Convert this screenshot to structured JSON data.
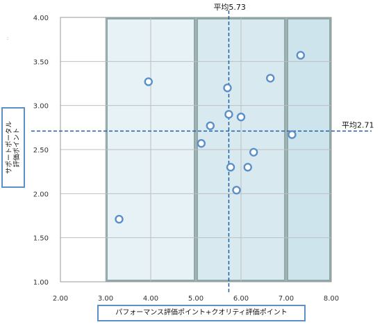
{
  "chart_data": {
    "type": "scatter",
    "xlabel": "パフォーマンス評価ポイント+クオリティ評価ポイント",
    "ylabel_lines": [
      "サポートポータル",
      "評価ポイント"
    ],
    "xlim": [
      2.0,
      8.0
    ],
    "ylim": [
      1.0,
      4.0
    ],
    "x_ticks": [
      "2.00",
      "3.00",
      "4.00",
      "5.00",
      "6.00",
      "7.00",
      "8.00"
    ],
    "y_ticks": [
      "1.00",
      "1.50",
      "2.00",
      "2.50",
      "3.00",
      "3.50",
      "4.00"
    ],
    "grid": true,
    "legend": "none",
    "marker_color": "#5b8fc9",
    "points": [
      {
        "x": 3.3,
        "y": 1.71
      },
      {
        "x": 3.95,
        "y": 3.27
      },
      {
        "x": 5.12,
        "y": 2.57
      },
      {
        "x": 5.32,
        "y": 2.77
      },
      {
        "x": 5.7,
        "y": 3.2
      },
      {
        "x": 5.73,
        "y": 2.9
      },
      {
        "x": 5.77,
        "y": 2.3
      },
      {
        "x": 5.9,
        "y": 2.04
      },
      {
        "x": 6.0,
        "y": 2.87
      },
      {
        "x": 6.15,
        "y": 2.3
      },
      {
        "x": 6.28,
        "y": 2.47
      },
      {
        "x": 6.65,
        "y": 3.31
      },
      {
        "x": 7.13,
        "y": 2.67
      },
      {
        "x": 7.32,
        "y": 3.57
      }
    ],
    "reference_lines": [
      {
        "axis": "x",
        "value": 5.73,
        "label": "平均5.73",
        "color": "#1f5fa8"
      },
      {
        "axis": "y",
        "value": 2.71,
        "label": "平均2.71",
        "color": "#1f5fa8"
      }
    ],
    "bands": [
      {
        "x_from": 3.0,
        "x_to": 5.0,
        "color": "#e6f2f6"
      },
      {
        "x_from": 5.0,
        "x_to": 7.0,
        "color": "#d8eaf0"
      },
      {
        "x_from": 7.0,
        "x_to": 8.0,
        "color": "#cde4ec"
      }
    ],
    "band_border_color": "#8fa9a9"
  },
  "stray_mark": ":"
}
